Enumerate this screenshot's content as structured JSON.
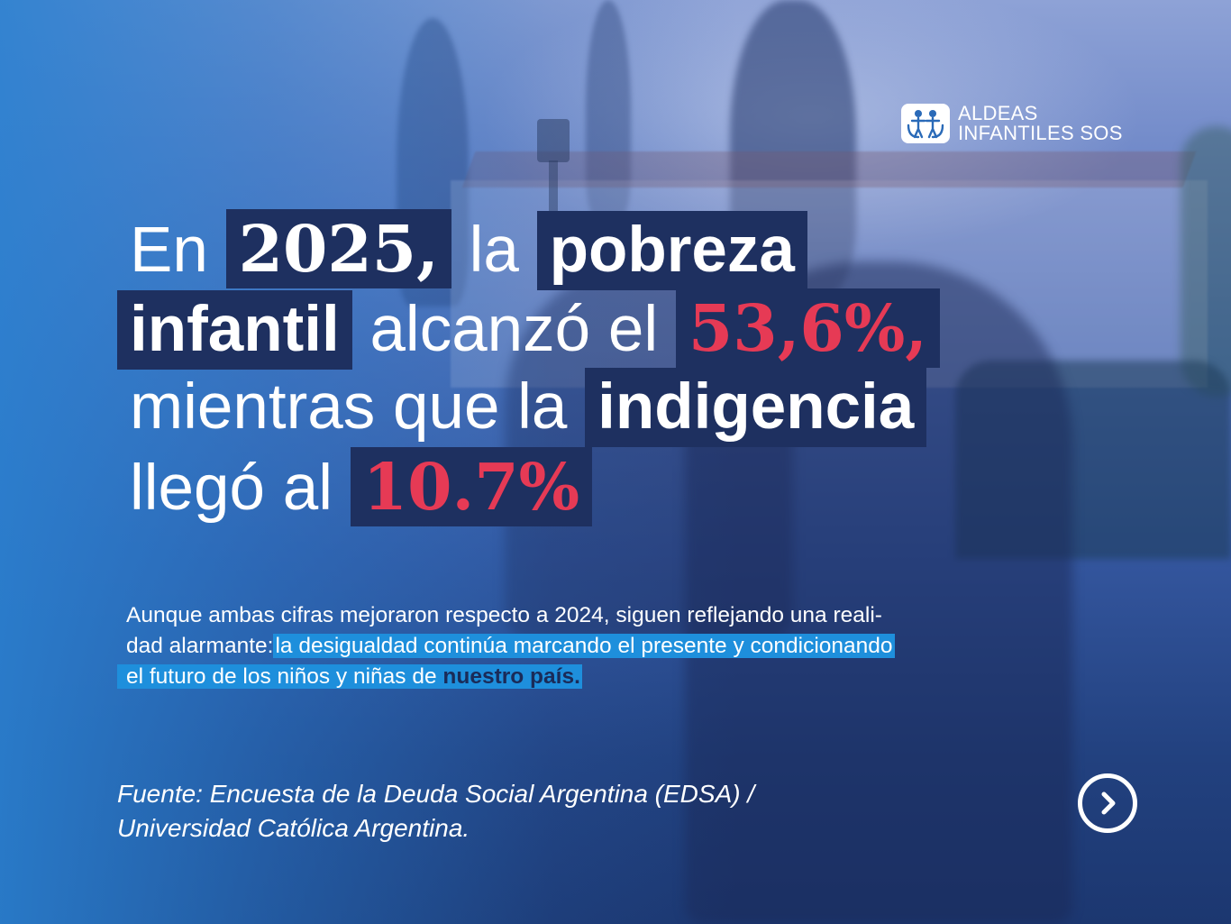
{
  "logo": {
    "line1": "ALDEAS",
    "line2": "INFANTILES SOS",
    "icon": "sos-children-icon"
  },
  "headline": {
    "l1_a": "En",
    "l1_year": "2025,",
    "l1_b": "la",
    "l1_c": "pobreza",
    "l2_a": "infantil",
    "l2_b": "alcanzó el",
    "l2_c": "53,6%,",
    "l3_a": "mientras que la",
    "l3_b": "indigencia",
    "l4_a": "llegó al",
    "l4_b": "10.7%"
  },
  "body": {
    "line1": "Aunque ambas cifras mejoraron respecto a 2024, siguen reflejando una reali-",
    "line2_plain": "dad alarmante:",
    "line2_highlight": "la desigualdad continúa marcando el presente y condicionando",
    "line3_highlight": "el futuro de los niños y niñas de",
    "line3_bold": "nuestro país."
  },
  "source": {
    "line1": "Fuente: Encuesta de la Deuda Social Argentina (EDSA) /",
    "line2": "Universidad Católica Argentina."
  },
  "nav": {
    "next_icon": "chevron-right-icon"
  },
  "colors": {
    "accent_red": "#e63a55",
    "navy_box": "#1e3060",
    "highlight_cyan": "#1e8fdc"
  }
}
